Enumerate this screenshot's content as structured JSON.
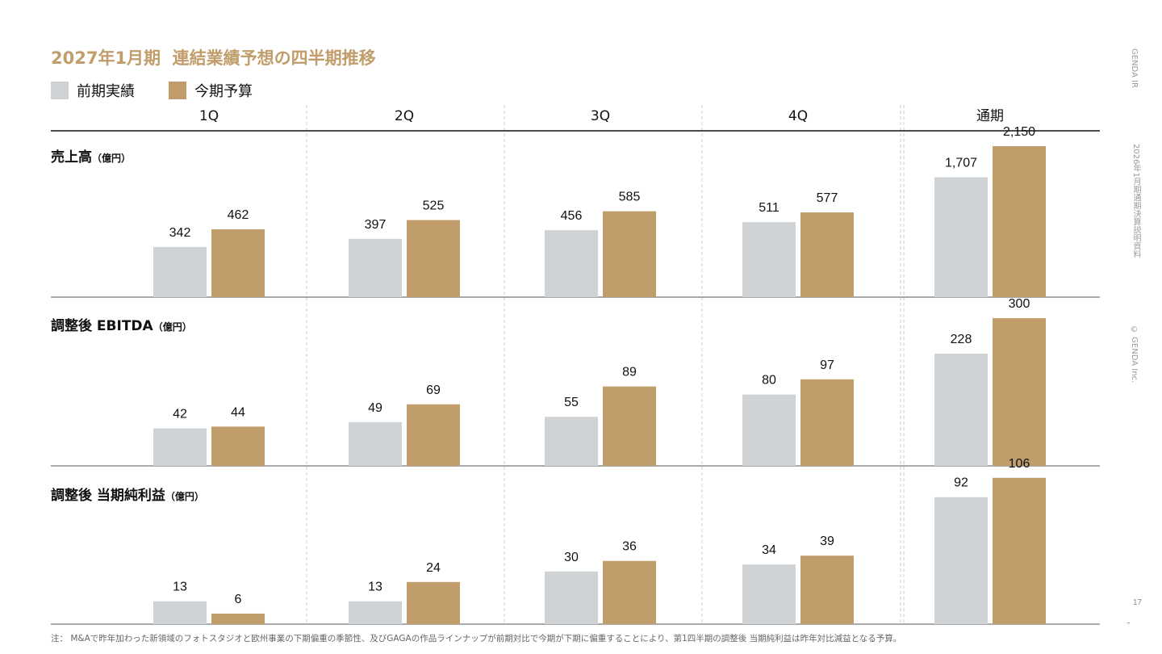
{
  "title": "2027年1月期  連結業績予想の四半期推移",
  "legend": {
    "prev": "前期実績",
    "curr": "今期予算"
  },
  "side_texts": {
    "top": "GENDA IR",
    "middle": "2026年1月期通期決算説明資料",
    "bottom": "© GENDA Inc."
  },
  "page_number": "17",
  "footnote": "注：  M&Aで昨年加わった新領域のフォトスタジオと欧州事業の下期偏重の季節性、及びGAGAの作品ラインナップが前期対比で今期が下期に偏重することにより、第1四半期の調整後 当期純利益は昨年対比減益となる予算。",
  "colors": {
    "prev": "#cfd3d6",
    "curr": "#c09d6b",
    "title": "#c09d6b",
    "axis": "#777777",
    "header_rule": "#111111",
    "divider": "#cccccc"
  },
  "chart_data": {
    "type": "bar",
    "categories": [
      "1Q",
      "2Q",
      "3Q",
      "4Q",
      "通期"
    ],
    "series_names": [
      "前期実績",
      "今期予算"
    ],
    "panels": [
      {
        "title_main": "売上高",
        "title_unit": "（億円）",
        "series": [
          {
            "name": "前期実績",
            "values": [
              342,
              397,
              456,
              511,
              1707
            ],
            "labels": [
              "342",
              "397",
              "456",
              "511",
              "1,707"
            ]
          },
          {
            "name": "今期予算",
            "values": [
              462,
              525,
              585,
              577,
              2150
            ],
            "labels": [
              "462",
              "525",
              "585",
              "577",
              "2,150"
            ]
          }
        ],
        "scales": {
          "quarterly_max": 1100,
          "full_year_max": 2300
        }
      },
      {
        "title_main": "調整後 EBITDA",
        "title_unit": "（億円）",
        "series": [
          {
            "name": "前期実績",
            "values": [
              42,
              49,
              55,
              80,
              228
            ],
            "labels": [
              "42",
              "49",
              "55",
              "80",
              "228"
            ]
          },
          {
            "name": "今期予算",
            "values": [
              44,
              69,
              89,
              97,
              300
            ],
            "labels": [
              "44",
              "69",
              "89",
              "97",
              "300"
            ]
          }
        ],
        "scales": {
          "quarterly_max": 181,
          "full_year_max": 328
        }
      },
      {
        "title_main": "調整後 当期純利益",
        "title_unit": "（億円）",
        "series": [
          {
            "name": "前期実績",
            "values": [
              13,
              13,
              30,
              34,
              92
            ],
            "labels": [
              "13",
              "13",
              "30",
              "34",
              "92"
            ]
          },
          {
            "name": "今期予算",
            "values": [
              6,
              24,
              36,
              39,
              106
            ],
            "labels": [
              "6",
              "24",
              "36",
              "39",
              "106"
            ]
          }
        ],
        "scales": {
          "quarterly_max": 92,
          "full_year_max": 117
        }
      }
    ]
  }
}
